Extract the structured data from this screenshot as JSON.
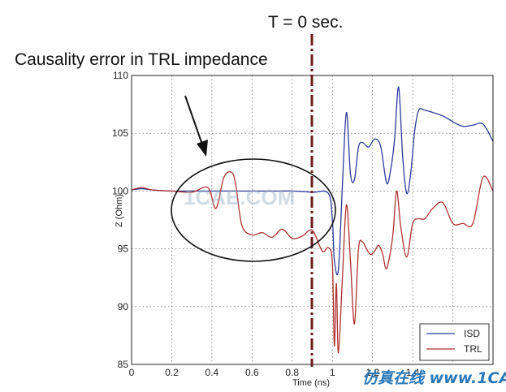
{
  "chart_data": {
    "type": "line",
    "title": "",
    "xlabel": "Time (ns)",
    "ylabel": "Z (Ohm)",
    "xlim": [
      0,
      1.8
    ],
    "ylim": [
      85,
      110
    ],
    "xticks": [
      0,
      0.2,
      0.4,
      0.6,
      0.8,
      1,
      1.2,
      1.4
    ],
    "xtick_labels": [
      "0",
      "0.2",
      "0.4",
      "0.6",
      "0.8",
      "1",
      "1.2",
      "1.4"
    ],
    "yticks": [
      85,
      90,
      95,
      100,
      105,
      110
    ],
    "ytick_labels": [
      "85",
      "90",
      "95",
      "100",
      "105",
      "110"
    ],
    "grid": true,
    "legend_position": "bottom-right",
    "series": [
      {
        "name": "ISD",
        "color": "#2b3a9c",
        "x": [
          0,
          0.05,
          0.1,
          0.2,
          0.3,
          0.4,
          0.5,
          0.6,
          0.7,
          0.8,
          0.9,
          0.98,
          1.0,
          1.01,
          1.03,
          1.05,
          1.07,
          1.09,
          1.11,
          1.13,
          1.15,
          1.18,
          1.21,
          1.24,
          1.27,
          1.29,
          1.31,
          1.33,
          1.35,
          1.37,
          1.39,
          1.41,
          1.43,
          1.46,
          1.5,
          1.55,
          1.6,
          1.65,
          1.7,
          1.75,
          1.8
        ],
        "y": [
          100.1,
          100.2,
          100.1,
          100.0,
          100.0,
          100.0,
          100.0,
          100.0,
          100.0,
          100.0,
          99.9,
          99.8,
          97.5,
          94.0,
          93.2,
          100.5,
          106.8,
          101.5,
          101.0,
          103.8,
          104.2,
          103.8,
          104.5,
          103.9,
          100.7,
          101.8,
          104.5,
          109.0,
          103.0,
          99.8,
          101.5,
          105.2,
          107.0,
          107.0,
          106.8,
          106.5,
          106.0,
          105.6,
          105.7,
          105.8,
          104.3
        ]
      },
      {
        "name": "TRL",
        "color": "#b03030",
        "x": [
          0,
          0.05,
          0.1,
          0.2,
          0.3,
          0.38,
          0.42,
          0.46,
          0.5,
          0.52,
          0.55,
          0.6,
          0.65,
          0.7,
          0.75,
          0.8,
          0.85,
          0.9,
          0.95,
          0.98,
          1.0,
          1.01,
          1.02,
          1.03,
          1.05,
          1.07,
          1.09,
          1.11,
          1.13,
          1.15,
          1.17,
          1.19,
          1.21,
          1.23,
          1.25,
          1.27,
          1.3,
          1.32,
          1.34,
          1.37,
          1.4,
          1.43,
          1.46,
          1.5,
          1.55,
          1.6,
          1.65,
          1.7,
          1.75,
          1.8
        ],
        "y": [
          100.1,
          100.3,
          100.1,
          100.0,
          99.9,
          100.3,
          98.5,
          101.2,
          101.6,
          100.4,
          97.0,
          96.2,
          96.4,
          96.0,
          96.7,
          95.9,
          96.1,
          96.6,
          94.8,
          95.1,
          93.8,
          86.6,
          92.0,
          86.0,
          92.5,
          98.8,
          94.0,
          88.5,
          95.0,
          95.6,
          95.0,
          94.5,
          94.8,
          95.3,
          94.6,
          93.3,
          96.0,
          100.0,
          97.0,
          94.3,
          97.2,
          97.6,
          97.6,
          98.5,
          99.0,
          97.2,
          97.2,
          97.2,
          101.2,
          100.0
        ]
      }
    ],
    "annotations": [
      {
        "text": "T = 0 sec."
      },
      {
        "text": "Causality error in TRL impedance"
      }
    ]
  },
  "watermark": {
    "main": "1CAE.COM",
    "corner": "仿真在线 www.1CAE.com"
  },
  "colors": {
    "isd": "#2b3a9c",
    "trl": "#b03030",
    "marker_line": "#6b1e1e"
  }
}
